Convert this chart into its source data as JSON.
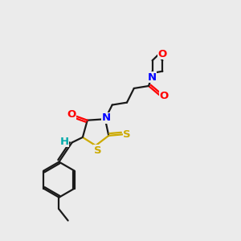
{
  "bg_color": "#ebebeb",
  "bond_color": "#1a1a1a",
  "bond_width": 1.6,
  "atom_colors": {
    "O": "#ff0000",
    "N": "#0000ff",
    "S": "#ccaa00",
    "C": "#1a1a1a",
    "H": "#00aaaa"
  },
  "font_size": 9.5
}
